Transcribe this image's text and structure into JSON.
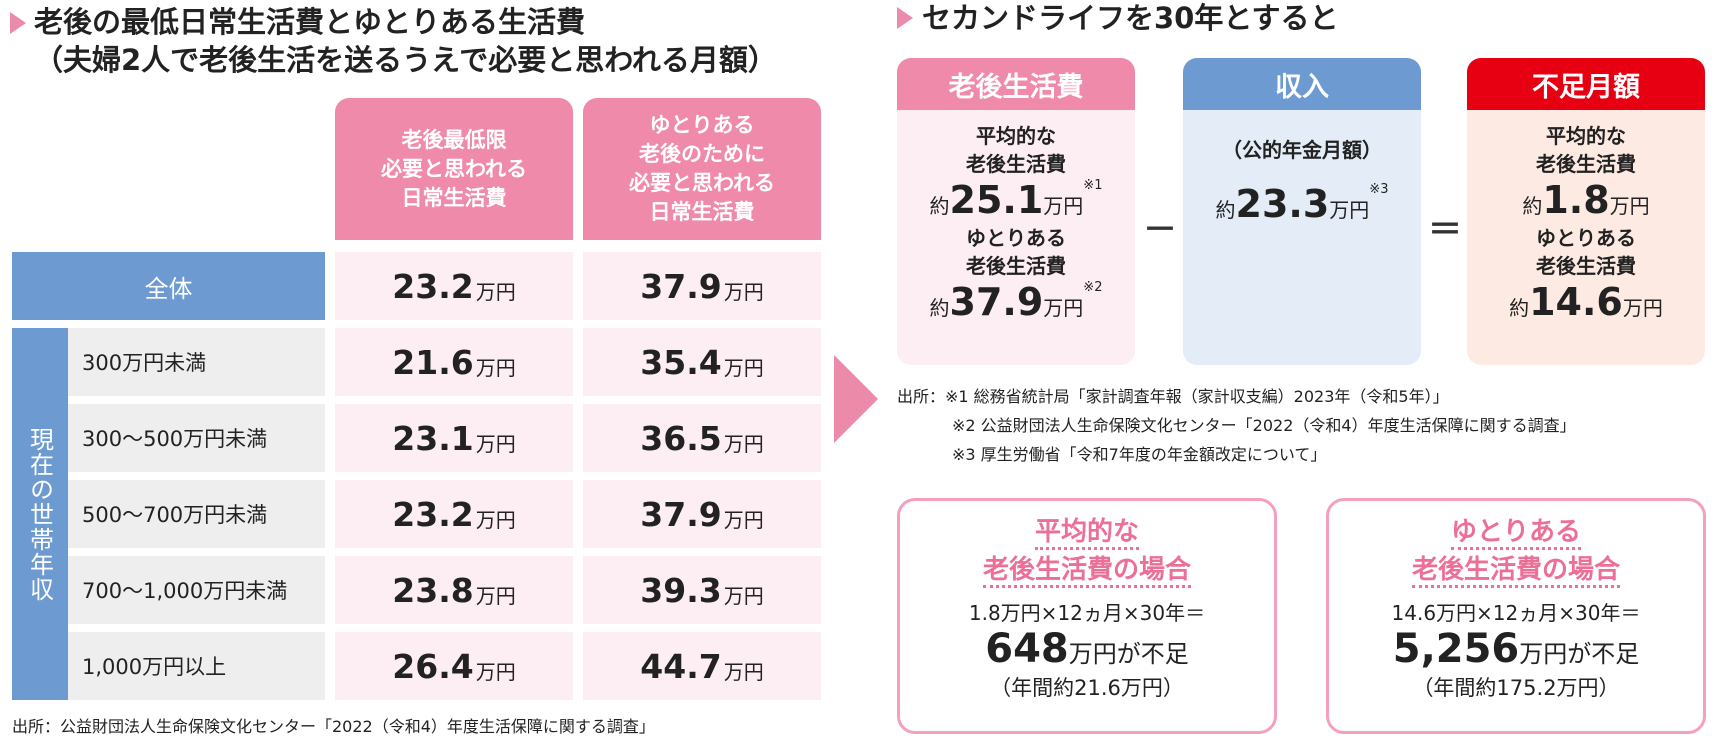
{
  "left": {
    "title_line1": "老後の最低日常生活費とゆとりある生活費",
    "title_line2": "（夫婦2人で老後生活を送るうえで必要と思われる月額）",
    "col_headers": [
      "老後最低限\n必要と思われる\n日常生活費",
      "ゆとりある\n老後のために\n必要と思われる\n日常生活費"
    ],
    "side_label": "現在の世帯年収",
    "unit": "万円",
    "rows": [
      {
        "label": "全体",
        "min": "23.2",
        "yutori": "37.9"
      },
      {
        "label": "300万円未満",
        "min": "21.6",
        "yutori": "35.4"
      },
      {
        "label": "300～500万円未満",
        "min": "23.1",
        "yutori": "36.5"
      },
      {
        "label": "500～700万円未満",
        "min": "23.2",
        "yutori": "37.9"
      },
      {
        "label": "700～1,000万円未満",
        "min": "23.8",
        "yutori": "39.3"
      },
      {
        "label": "1,000万円以上",
        "min": "26.4",
        "yutori": "44.7"
      }
    ],
    "source": "出所：公益財団法人生命保険文化センター「2022（令和4）年度生活保障に関する調査」"
  },
  "right": {
    "title": "セカンドライフを30年とすると",
    "boxes": {
      "living": {
        "header": "老後生活費",
        "item1_label": "平均的な\n老後生活費",
        "item1_prefix": "約",
        "item1_value": "25.1",
        "item1_unit": "万円",
        "item1_note": "※1",
        "item2_label": "ゆとりある\n老後生活費",
        "item2_prefix": "約",
        "item2_value": "37.9",
        "item2_unit": "万円",
        "item2_note": "※2"
      },
      "income": {
        "header": "収入",
        "label": "（公的年金月額）",
        "prefix": "約",
        "value": "23.3",
        "unit": "万円",
        "note": "※3"
      },
      "shortage": {
        "header": "不足月額",
        "item1_label": "平均的な\n老後生活費",
        "item1_prefix": "約",
        "item1_value": "1.8",
        "item1_unit": "万円",
        "item2_label": "ゆとりある\n老後生活費",
        "item2_prefix": "約",
        "item2_value": "14.6",
        "item2_unit": "万円"
      }
    },
    "op_minus": "－",
    "op_equals": "＝",
    "sources": [
      "出所：※1 総務省統計局「家計調査年報（家計収支編）2023年（令和5年）」",
      "※2 公益財団法人生命保険文化センター「2022（令和4）年度生活保障に関する調査」",
      "※3 厚生労働省「令和7年度の年金額改定について」"
    ],
    "calc": [
      {
        "header1": "平均的な",
        "header2": "老後生活費の場合",
        "formula": "1.8万円×12ヵ月×30年＝",
        "value": "648",
        "suffix": "万円が不足",
        "annual": "（年間約21.6万円）"
      },
      {
        "header1": "ゆとりある",
        "header2": "老後生活費の場合",
        "formula": "14.6万円×12ヵ月×30年＝",
        "value": "5,256",
        "suffix": "万円が不足",
        "annual": "（年間約175.2万円）"
      }
    ]
  },
  "colors": {
    "pink": "#f08aaa",
    "light_pink": "#fdeef3",
    "blue": "#6d9bd1",
    "light_blue": "#e3ecf7",
    "red": "#e60012",
    "peach": "#fdebe3"
  }
}
